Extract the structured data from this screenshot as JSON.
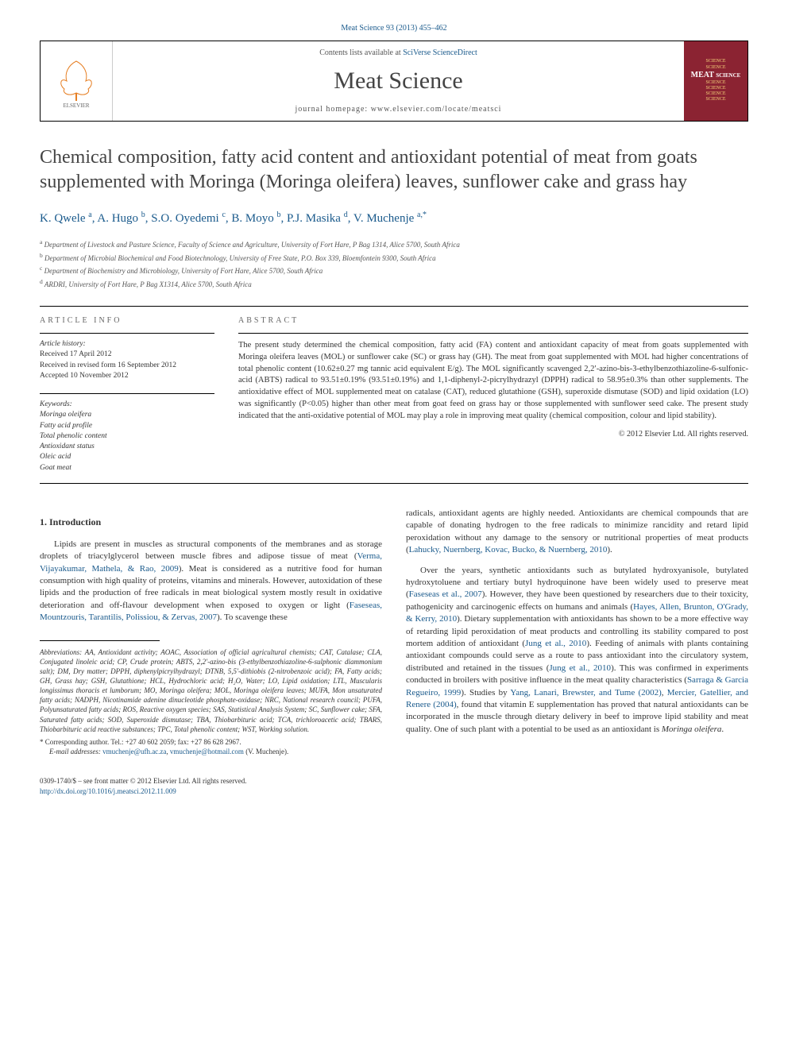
{
  "top_link": "Meat Science 93 (2013) 455–462",
  "banner": {
    "contents_prefix": "Contents lists available at ",
    "contents_link": "SciVerse ScienceDirect",
    "journal_name": "Meat Science",
    "homepage_label": "journal homepage: www.elsevier.com/locate/meatsci",
    "cover_lines": [
      "SCIENCE",
      "SCIENCE",
      "MEAT SCIENCE",
      "SCIENCE",
      "SCIENCE",
      "SCIENCE",
      "SCIENCE"
    ]
  },
  "title": "Chemical composition, fatty acid content and antioxidant potential of meat from goats supplemented with Moringa (Moringa oleifera) leaves, sunflower cake and grass hay",
  "authors_html": "K. Qwele <sup>a</sup>, A. Hugo <sup>b</sup>, S.O. Oyedemi <sup>c</sup>, B. Moyo <sup>b</sup>, P.J. Masika <sup>d</sup>, V. Muchenje <sup>a,</sup>",
  "star_sup": "*",
  "affiliations": [
    "a Department of Livestock and Pasture Science, Faculty of Science and Agriculture, University of Fort Hare, P Bag 1314, Alice 5700, South Africa",
    "b Department of Microbial Biochemical and Food Biotechnology, University of Free State, P.O. Box 339, Bloemfontein 9300, South Africa",
    "c Department of Biochemistry and Microbiology, University of Fort Hare, Alice 5700, South Africa",
    "d ARDRI, University of Fort Hare, P Bag X1314, Alice 5700, South Africa"
  ],
  "info": {
    "header": "ARTICLE INFO",
    "history_label": "Article history:",
    "dates": [
      "Received 17 April 2012",
      "Received in revised form 16 September 2012",
      "Accepted 10 November 2012"
    ],
    "keywords_label": "Keywords:",
    "keywords": [
      "Moringa oleifera",
      "Fatty acid profile",
      "Total phenolic content",
      "Antioxidant status",
      "Oleic acid",
      "Goat meat"
    ]
  },
  "abstract": {
    "header": "ABSTRACT",
    "text": "The present study determined the chemical composition, fatty acid (FA) content and antioxidant capacity of meat from goats supplemented with Moringa oleifera leaves (MOL) or sunflower cake (SC) or grass hay (GH). The meat from goat supplemented with MOL had higher concentrations of total phenolic content (10.62±0.27 mg tannic acid equivalent E/g). The MOL significantly scavenged 2,2′-azino-bis-3-ethylbenzothiazoline-6-sulfonic-acid (ABTS) radical to 93.51±0.19% (93.51±0.19%) and 1,1-diphenyl-2-picrylhydrazyl (DPPH) radical to 58.95±0.3% than other supplements. The antioxidative effect of MOL supplemented meat on catalase (CAT), reduced glutathione (GSH), superoxide dismutase (SOD) and lipid oxidation (LO) was significantly (P<0.05) higher than other meat from goat feed on grass hay or those supplemented with sunflower seed cake. The present study indicated that the anti-oxidative potential of MOL may play a role in improving meat quality (chemical composition, colour and lipid stability).",
    "copyright": "© 2012 Elsevier Ltd. All rights reserved."
  },
  "section1_heading": "1. Introduction",
  "left_paras": [
    "Lipids are present in muscles as structural components of the membranes and as storage droplets of triacylglycerol between muscle fibres and adipose tissue of meat (<a>Verma, Vijayakumar, Mathela, & Rao, 2009</a>). Meat is considered as a nutritive food for human consumption with high quality of proteins, vitamins and minerals. However, autoxidation of these lipids and the production of free radicals in meat biological system mostly result in oxidative deterioration and off-flavour development when exposed to oxygen or light (<a>Faseseas, Mountzouris, Tarantilis, Polissiou, & Zervas, 2007</a>). To scavenge these"
  ],
  "right_paras": [
    "radicals, antioxidant agents are highly needed. Antioxidants are chemical compounds that are capable of donating hydrogen to the free radicals to minimize rancidity and retard lipid peroxidation without any damage to the sensory or nutritional properties of meat products (<a>Lahucky, Nuernberg, Kovac, Bucko, & Nuernberg, 2010</a>).",
    "Over the years, synthetic antioxidants such as butylated hydroxyanisole, butylated hydroxytoluene and tertiary butyl hydroquinone have been widely used to preserve meat (<a>Faseseas et al., 2007</a>). However, they have been questioned by researchers due to their toxicity, pathogenicity and carcinogenic effects on humans and animals (<a>Hayes, Allen, Brunton, O'Grady, & Kerry, 2010</a>). Dietary supplementation with antioxidants has shown to be a more effective way of retarding lipid peroxidation of meat products and controlling its stability compared to post mortem addition of antioxidant (<a>Jung et al., 2010</a>). Feeding of animals with plants containing antioxidant compounds could serve as a route to pass antioxidant into the circulatory system, distributed and retained in the tissues (<a>Jung et al., 2010</a>). This was confirmed in experiments conducted in broilers with positive influence in the meat quality characteristics (<a>Sarraga & Garcia Regueiro, 1999</a>). Studies by <a>Yang, Lanari, Brewster, and Tume (2002)</a>, <a>Mercier, Gatellier, and Renere (2004)</a>, found that vitamin E supplementation has proved that natural antioxidants can be incorporated in the muscle through dietary delivery in beef to improve lipid stability and meat quality. One of such plant with a potential to be used as an antioxidant is <i>Moringa oleifera</i>."
  ],
  "abbrev_text": "Abbreviations: AA, Antioxidant activity; AOAC, Association of official agricultural chemists; CAT, Catalase; CLA, Conjugated linoleic acid; CP, Crude protein; ABTS, 2,2′-azino-bis (3-ethylbenzothiazoline-6-sulphonic diammonium salt); DM, Dry matter; DPPH, diphenylpicrylhydrazyl; DTNB, 5,5′-dithiobis (2-nitrobenzoic acid); FA, Fatty acids; GH, Grass hay; GSH, Glutathione; HCL, Hydrochloric acid; H₂O, Water; LO, Lipid oxidation; LTL, Muscularis longissimus thoracis et lumborum; MO, Moringa oleifera; MOL, Moringa oleifera leaves; MUFA, Mon unsaturated fatty acids; NADPH, Nicotinamide adenine dinucleotide phosphate-oxidase; NRC, National research council; PUFA, Polyunsaturated fatty acids; ROS, Reactive oxygen species; SAS, Statistical Analysis System; SC, Sunflower cake; SFA, Saturated fatty acids; SOD, Superoxide dismutase; TBA, Thiobarbituric acid; TCA, trichloroacetic acid; TBARS, Thiobarbituric acid reactive substances; TPC, Total phenolic content; WST, Working solution.",
  "corr_author": "* Corresponding author. Tel.: +27 40 602 2059; fax: +27 86 628 2967.",
  "email_label": "E-mail addresses: ",
  "email1": "vmuchenje@ufh.ac.za",
  "email_sep": ", ",
  "email2": "vmuchenje@hotmail.com",
  "email_suffix": " (V. Muchenje).",
  "bottom": {
    "issn": "0309-1740/$ – see front matter © 2012 Elsevier Ltd. All rights reserved.",
    "doi": "http://dx.doi.org/10.1016/j.meatsci.2012.11.009"
  },
  "colors": {
    "link": "#1a5a8c",
    "cover_bg": "#8b2332",
    "cover_text": "#f5d47a"
  }
}
